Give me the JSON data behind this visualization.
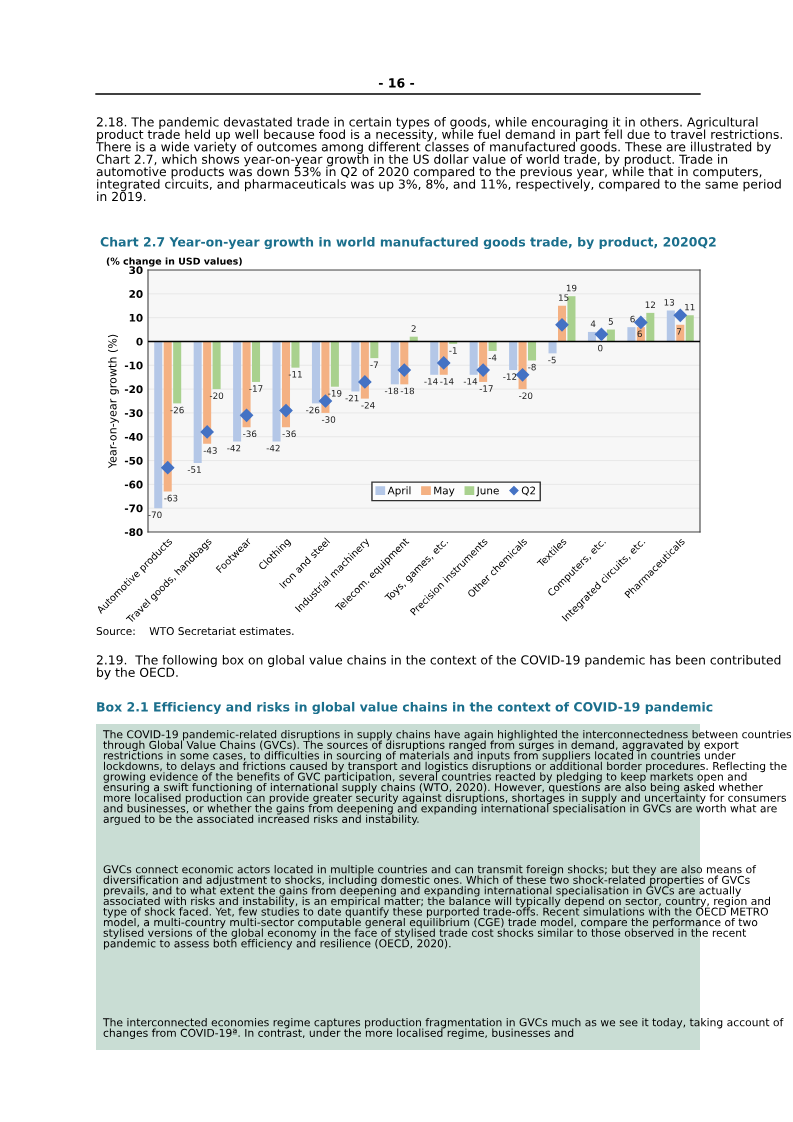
{
  "chart_data": {
    "type": "bar",
    "title": "Chart 2.7 Year-on-year growth in world manufactured goods trade, by product, 2020Q2",
    "subtitle": "(% change in USD values)",
    "ylabel": "Year-on-year growth (%)",
    "categories": [
      "Automotive products",
      "Travel goods, handbags",
      "Footwear",
      "Clothing",
      "Iron and steel",
      "Industrial machinery",
      "Telecom. equipment",
      "Toys, games, etc.",
      "Precision instruments",
      "Other chemicals",
      "Textiles",
      "Computers, etc.",
      "Integrated circuits, etc.",
      "Pharmaceuticals"
    ],
    "series": [
      {
        "name": "April",
        "color": "#b4c7e7",
        "values": [
          -70,
          -51,
          -42,
          -42,
          -26,
          -21,
          -18,
          -14,
          -14,
          -12,
          -5,
          4,
          6,
          13
        ],
        "value_labels": [
          "-70",
          "-51",
          "-42",
          "-42",
          "-26",
          "-21",
          "-18",
          "-14",
          "-14",
          "-12",
          "-5",
          "4",
          "6",
          "13"
        ]
      },
      {
        "name": "May",
        "color": "#f4b183",
        "values": [
          -63,
          -43,
          -36,
          -36,
          -30,
          -24,
          -18,
          -14,
          -17,
          -20,
          15,
          0,
          6,
          7
        ],
        "value_labels": [
          "-63",
          "-43",
          "-36",
          "-36",
          "-30",
          "-24",
          "-18",
          "-14",
          "-17",
          "-20",
          "15",
          "0",
          "6",
          "7"
        ]
      },
      {
        "name": "June",
        "color": "#a9d18e",
        "values": [
          -26,
          -20,
          -17,
          -11,
          -19,
          -7,
          2,
          -1,
          -4,
          -8,
          19,
          5,
          12,
          11
        ],
        "value_labels": [
          "-26",
          "-20",
          "-17",
          "-11",
          "-19",
          "-7",
          "2",
          "-1",
          "-4",
          "-8",
          "19",
          "5",
          "12",
          "11"
        ]
      },
      {
        "name": "Q2",
        "type": "scatter",
        "marker": "diamond",
        "color": "#4472c4",
        "values": [
          -53,
          -38,
          -31,
          -29,
          -25,
          -17,
          -12,
          -9,
          -12,
          -14,
          7,
          3,
          8,
          11
        ]
      }
    ],
    "ylim": [
      -80,
      30
    ],
    "yticks": [
      -80,
      -70,
      -60,
      -50,
      -40,
      -30,
      -20,
      -10,
      0,
      10,
      20,
      30
    ],
    "grid": "y",
    "legend": "bottom right",
    "annotations": [
      "- 16 -",
      "2.18. The pandemic devastated trade in certain types of goods, while encouraging it in others. Agricultural product trade held up well because food is a necessity, while fuel demand in part fell due to travel restrictions. There is a wide variety of outcomes among different classes of manufactured goods. These are illustrated by Chart 2.7, which shows year-on-year growth in the US dollar value of world trade, by product. Trade in automotive products was down 53% in Q2 of 2020 compared to the previous year, while that in computers, integrated circuits, and pharmaceuticals was up 3%, 8%, and 11%, respectively, compared to the same period in 2019.",
      "Source:    WTO Secretariat estimates.",
      "2.19.  The following box on global value chains in the context of the COVID-19 pandemic has been contributed by the OECD.",
      "Box 2.1 Efficiency and risks in global value chains in the context of COVID-19 pandemic",
      "The COVID-19 pandemic-related disruptions in supply chains have again highlighted the interconnectedness between countries through Global Value Chains (GVCs). The sources of disruptions ranged from surges in demand, aggravated by export restrictions in some cases, to difficulties in sourcing of materials and inputs from suppliers located in countries under lockdowns, to delays and frictions caused by transport and logistics disruptions or additional border procedures. Reflecting the growing evidence of the benefits of GVC participation, several countries reacted by pledging to keep markets open and ensuring a swift functioning of international supply chains (WTO, 2020). However, questions are also being asked whether more localised production can provide greater security against disruptions, shortages in supply and uncertainty for consumers and businesses, or whether the gains from deepening and expanding international specialisation in GVCs are worth what are argued to be the associated increased risks and instability.",
      "GVCs connect economic actors located in multiple countries and can transmit foreign shocks; but they are also means of diversification and adjustment to shocks, including domestic ones. Which of these two shock-related properties of GVCs prevails, and to what extent the gains from deepening and expanding international specialisation in GVCs are actually associated with risks and instability, is an empirical matter; the balance will typically depend on sector, country, region and type of shock faced. Yet, few studies to date quantify these purported trade-offs. Recent simulations with the OECD METRO model, a multi-country multi-sector computable general equilibrium (CGE) trade model, compare the performance of two stylised versions of the global economy in the face of stylised trade cost shocks similar to those observed in the recent pandemic to assess both efficiency and resilience (OECD, 2020).",
      "The interconnected economies regime captures production fragmentation in GVCs much as we see it today, taking account of changes from COVID-19ª. In contrast, under the more localised regime, businesses and"
    ]
  }
}
